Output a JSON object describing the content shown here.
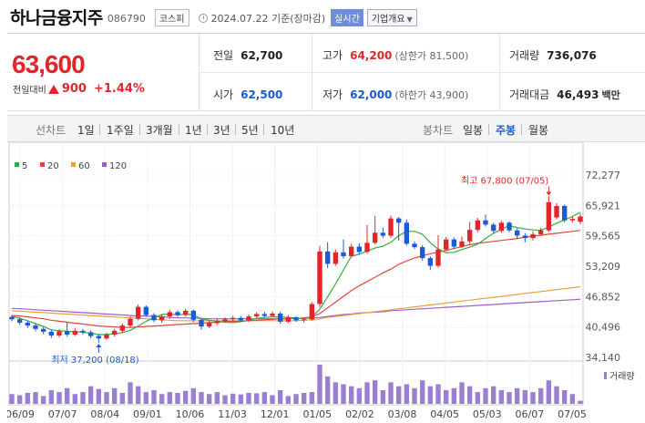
{
  "header": {
    "name": "하나금융지주",
    "code": "086790",
    "market": "코스피",
    "date": "2024.07.22 기준(장마감)",
    "realtime": "실시간",
    "info": "기업개요"
  },
  "summary": {
    "price": "63,600",
    "change_label": "전일대비",
    "change": "900",
    "change_pct": "+1.44%",
    "prev_label": "전일",
    "prev": "62,700",
    "high_label": "고가",
    "high": "64,200",
    "high_limit": "(상한가 81,500)",
    "volume_label": "거래량",
    "volume": "736,076",
    "open_label": "시가",
    "open": "62,500",
    "low_label": "저가",
    "low": "62,000",
    "low_limit": "(하한가 43,900)",
    "amount_label": "거래대금",
    "amount": "46,493",
    "amount_unit": "백만"
  },
  "tabs": {
    "line_label": "선차트",
    "line": [
      "1일",
      "1주일",
      "3개월",
      "1년",
      "3년",
      "5년",
      "10년"
    ],
    "candle_label": "봉차트",
    "candle": [
      "일봉",
      "주봉",
      "월봉"
    ],
    "active_candle": "주봉"
  },
  "colors": {
    "up": "#e0262b",
    "down": "#1a5bd6",
    "ma5": "#3aa842",
    "ma20": "#e0443a",
    "ma60": "#e8a03a",
    "ma120": "#9b5fc7",
    "volume": "#9b7fd0"
  },
  "chart_data": {
    "type": "candlestick",
    "legend": [
      "5",
      "20",
      "60",
      "120"
    ],
    "y_ticks": [
      "72,277",
      "65,921",
      "59,565",
      "53,209",
      "46,852",
      "40,496",
      "34,140"
    ],
    "ylim": [
      34140,
      72277
    ],
    "x_labels": [
      "06/09",
      "07/07",
      "08/04",
      "09/01",
      "10/06",
      "11/03",
      "12/01",
      "01/05",
      "02/02",
      "03/08",
      "04/05",
      "05/03",
      "06/07",
      "07/05"
    ],
    "high_annotation": "최고 67,800 (07/05)",
    "low_annotation": "최저 37,200 (08/18)",
    "volume_label": "거래량",
    "candles": [
      {
        "o": 42600,
        "c": 42100,
        "h": 43000,
        "l": 41700
      },
      {
        "o": 42100,
        "c": 41400,
        "h": 42500,
        "l": 40900
      },
      {
        "o": 41400,
        "c": 40800,
        "h": 41800,
        "l": 40300
      },
      {
        "o": 40800,
        "c": 40100,
        "h": 41200,
        "l": 39600
      },
      {
        "o": 40100,
        "c": 39500,
        "h": 40500,
        "l": 39000
      },
      {
        "o": 39500,
        "c": 38700,
        "h": 40000,
        "l": 38200
      },
      {
        "o": 38700,
        "c": 39600,
        "h": 40100,
        "l": 38300
      },
      {
        "o": 39600,
        "c": 38900,
        "h": 41500,
        "l": 38500
      },
      {
        "o": 38900,
        "c": 39700,
        "h": 40300,
        "l": 38600
      },
      {
        "o": 39700,
        "c": 39400,
        "h": 40100,
        "l": 38900
      },
      {
        "o": 39400,
        "c": 38600,
        "h": 39800,
        "l": 38100
      },
      {
        "o": 38600,
        "c": 38100,
        "h": 39000,
        "l": 37200
      },
      {
        "o": 38100,
        "c": 38900,
        "h": 39300,
        "l": 37800
      },
      {
        "o": 38900,
        "c": 39700,
        "h": 40100,
        "l": 38500
      },
      {
        "o": 39700,
        "c": 40800,
        "h": 41200,
        "l": 39300
      },
      {
        "o": 40800,
        "c": 42200,
        "h": 42700,
        "l": 40400
      },
      {
        "o": 42200,
        "c": 44700,
        "h": 45200,
        "l": 41900
      },
      {
        "o": 44700,
        "c": 43000,
        "h": 45000,
        "l": 42600
      },
      {
        "o": 43000,
        "c": 41900,
        "h": 43400,
        "l": 41500
      },
      {
        "o": 41900,
        "c": 42700,
        "h": 43200,
        "l": 41400
      },
      {
        "o": 42700,
        "c": 43600,
        "h": 44100,
        "l": 42200
      },
      {
        "o": 43600,
        "c": 43000,
        "h": 44000,
        "l": 42600
      },
      {
        "o": 43000,
        "c": 43900,
        "h": 44300,
        "l": 42700
      },
      {
        "o": 43900,
        "c": 42000,
        "h": 44100,
        "l": 41500
      },
      {
        "o": 42000,
        "c": 40600,
        "h": 42300,
        "l": 39900
      },
      {
        "o": 40600,
        "c": 41300,
        "h": 41800,
        "l": 40200
      },
      {
        "o": 41300,
        "c": 41700,
        "h": 42200,
        "l": 40900
      },
      {
        "o": 41700,
        "c": 42100,
        "h": 42500,
        "l": 41400
      },
      {
        "o": 42100,
        "c": 42400,
        "h": 42800,
        "l": 41800
      },
      {
        "o": 42400,
        "c": 41900,
        "h": 42800,
        "l": 41600
      },
      {
        "o": 41900,
        "c": 42700,
        "h": 43100,
        "l": 41600
      },
      {
        "o": 42700,
        "c": 43200,
        "h": 43600,
        "l": 42400
      },
      {
        "o": 43200,
        "c": 42800,
        "h": 43700,
        "l": 42500
      },
      {
        "o": 42800,
        "c": 43300,
        "h": 43700,
        "l": 42600
      },
      {
        "o": 43300,
        "c": 41600,
        "h": 43700,
        "l": 41200
      },
      {
        "o": 41600,
        "c": 42500,
        "h": 43000,
        "l": 41300
      },
      {
        "o": 42500,
        "c": 41900,
        "h": 42800,
        "l": 41600
      },
      {
        "o": 41900,
        "c": 42100,
        "h": 42500,
        "l": 41400
      },
      {
        "o": 42100,
        "c": 45300,
        "h": 45700,
        "l": 41800
      },
      {
        "o": 45300,
        "c": 56300,
        "h": 57500,
        "l": 44700
      },
      {
        "o": 56300,
        "c": 53700,
        "h": 58200,
        "l": 52800
      },
      {
        "o": 53700,
        "c": 56100,
        "h": 56700,
        "l": 53300
      },
      {
        "o": 56100,
        "c": 55300,
        "h": 58800,
        "l": 54800
      },
      {
        "o": 55300,
        "c": 57300,
        "h": 57900,
        "l": 55000
      },
      {
        "o": 57300,
        "c": 56200,
        "h": 58000,
        "l": 55700
      },
      {
        "o": 56200,
        "c": 58100,
        "h": 61800,
        "l": 55800
      },
      {
        "o": 58100,
        "c": 60200,
        "h": 63700,
        "l": 57800
      },
      {
        "o": 60200,
        "c": 59600,
        "h": 61300,
        "l": 59100
      },
      {
        "o": 59600,
        "c": 63200,
        "h": 63800,
        "l": 59200
      },
      {
        "o": 63200,
        "c": 62300,
        "h": 63500,
        "l": 58500
      },
      {
        "o": 62300,
        "c": 57900,
        "h": 63000,
        "l": 57500
      },
      {
        "o": 57900,
        "c": 57200,
        "h": 58400,
        "l": 56800
      },
      {
        "o": 57200,
        "c": 54900,
        "h": 57600,
        "l": 54400
      },
      {
        "o": 54900,
        "c": 53300,
        "h": 55300,
        "l": 52400
      },
      {
        "o": 53300,
        "c": 56700,
        "h": 59700,
        "l": 52900
      },
      {
        "o": 56700,
        "c": 58800,
        "h": 59300,
        "l": 56300
      },
      {
        "o": 58800,
        "c": 57300,
        "h": 59200,
        "l": 56800
      },
      {
        "o": 57300,
        "c": 58400,
        "h": 59400,
        "l": 57000
      },
      {
        "o": 58400,
        "c": 60800,
        "h": 62500,
        "l": 57900
      },
      {
        "o": 60800,
        "c": 62800,
        "h": 63300,
        "l": 60300
      },
      {
        "o": 62800,
        "c": 61900,
        "h": 64000,
        "l": 61500
      },
      {
        "o": 61900,
        "c": 60600,
        "h": 62300,
        "l": 60200
      },
      {
        "o": 60600,
        "c": 62300,
        "h": 62700,
        "l": 60200
      },
      {
        "o": 62300,
        "c": 60700,
        "h": 62600,
        "l": 60300
      },
      {
        "o": 60700,
        "c": 59600,
        "h": 61100,
        "l": 58900
      },
      {
        "o": 59600,
        "c": 59100,
        "h": 60100,
        "l": 58200
      },
      {
        "o": 59100,
        "c": 59900,
        "h": 60500,
        "l": 58600
      },
      {
        "o": 59900,
        "c": 60700,
        "h": 61200,
        "l": 59500
      },
      {
        "o": 60700,
        "c": 66600,
        "h": 67800,
        "l": 60300
      },
      {
        "o": 63400,
        "c": 65800,
        "h": 66400,
        "l": 63000
      },
      {
        "o": 65800,
        "c": 62800,
        "h": 66100,
        "l": 62400
      },
      {
        "o": 62800,
        "c": 63100,
        "h": 63600,
        "l": 62300
      },
      {
        "o": 62500,
        "c": 63600,
        "h": 64200,
        "l": 62000
      }
    ],
    "ma5": [
      42700,
      42300,
      41800,
      41200,
      40600,
      39900,
      39700,
      39600,
      39500,
      39400,
      39200,
      38900,
      38900,
      39100,
      39300,
      39800,
      40700,
      41700,
      42400,
      43100,
      43200,
      43000,
      43200,
      43000,
      42200,
      41900,
      41700,
      41500,
      41400,
      41600,
      41900,
      42300,
      42500,
      42600,
      42600,
      42500,
      42400,
      42200,
      42600,
      44200,
      46800,
      49500,
      52400,
      55300,
      55700,
      56400,
      57000,
      57400,
      58200,
      59600,
      60500,
      60500,
      59900,
      58100,
      56800,
      56000,
      56100,
      56700,
      57200,
      57800,
      59000,
      60100,
      60900,
      61700,
      61300,
      61000,
      60800,
      60700,
      61400,
      62200,
      62900,
      63600,
      64500
    ],
    "ma20": [
      42900,
      42800,
      42600,
      42400,
      42200,
      41900,
      41700,
      41500,
      41300,
      41100,
      40900,
      40700,
      40600,
      40500,
      40400,
      40400,
      40500,
      40600,
      40700,
      40800,
      40900,
      41000,
      41100,
      41200,
      41300,
      41400,
      41500,
      41600,
      41700,
      41700,
      41800,
      41900,
      42000,
      42100,
      42200,
      42200,
      42300,
      42400,
      42600,
      43300,
      44500,
      45700,
      46900,
      48100,
      49100,
      50000,
      50900,
      51800,
      52600,
      53600,
      54300,
      54900,
      55400,
      55800,
      56200,
      56500,
      56900,
      57300,
      57700,
      58000,
      58200,
      58400,
      58600,
      58800,
      59000,
      59300,
      59500,
      59700,
      59900,
      60100,
      60300,
      60500,
      60700
    ],
    "ma60": [
      43900,
      43800,
      43700,
      43600,
      43500,
      43400,
      43300,
      43200,
      43100,
      43000,
      42900,
      42800,
      42700,
      42600,
      42500,
      42400,
      42300,
      42200,
      42100,
      42000,
      41900,
      41800,
      41800,
      41800,
      41800,
      41800,
      41800,
      41800,
      41800,
      41800,
      41800,
      41800,
      41800,
      41800,
      41800,
      41800,
      41800,
      41900,
      42000,
      42200,
      42500,
      42700,
      42900,
      43100,
      43300,
      43500,
      43700,
      43900,
      44100,
      44300,
      44500,
      44700,
      44900,
      45100,
      45300,
      45500,
      45700,
      45900,
      46100,
      46300,
      46500,
      46700,
      46900,
      47100,
      47300,
      47500,
      47700,
      47900,
      48100,
      48300,
      48500,
      48700,
      48900
    ],
    "ma120": [
      44400,
      44300,
      44200,
      44100,
      44000,
      43900,
      43800,
      43700,
      43600,
      43500,
      43400,
      43300,
      43200,
      43100,
      43000,
      42900,
      42800,
      42800,
      42700,
      42600,
      42500,
      42400,
      42400,
      42300,
      42300,
      42200,
      42200,
      42200,
      42200,
      42200,
      42200,
      42200,
      42200,
      42200,
      42200,
      42200,
      42300,
      42300,
      42400,
      42500,
      42700,
      42900,
      43100,
      43200,
      43400,
      43500,
      43600,
      43700,
      43900,
      44000,
      44100,
      44200,
      44300,
      44400,
      44500,
      44600,
      44700,
      44800,
      44900,
      45000,
      45100,
      45200,
      45300,
      45400,
      45500,
      45600,
      45700,
      45800,
      45900,
      46000,
      46100,
      46200,
      46300
    ],
    "volume_rel": [
      0.25,
      0.22,
      0.28,
      0.3,
      0.2,
      0.35,
      0.3,
      0.4,
      0.25,
      0.3,
      0.45,
      0.38,
      0.3,
      0.4,
      0.28,
      0.55,
      0.45,
      0.3,
      0.35,
      0.25,
      0.3,
      0.28,
      0.33,
      0.4,
      0.3,
      0.25,
      0.3,
      0.22,
      0.26,
      0.24,
      0.28,
      0.27,
      0.3,
      0.22,
      0.35,
      0.2,
      0.25,
      0.28,
      0.3,
      1.0,
      0.7,
      0.55,
      0.5,
      0.45,
      0.4,
      0.55,
      0.6,
      0.35,
      0.55,
      0.45,
      0.5,
      0.4,
      0.6,
      0.45,
      0.5,
      0.35,
      0.4,
      0.55,
      0.45,
      0.3,
      0.4,
      0.45,
      0.35,
      0.3,
      0.4,
      0.35,
      0.3,
      0.4,
      0.6,
      0.45,
      0.35,
      0.25,
      0.08
    ]
  }
}
